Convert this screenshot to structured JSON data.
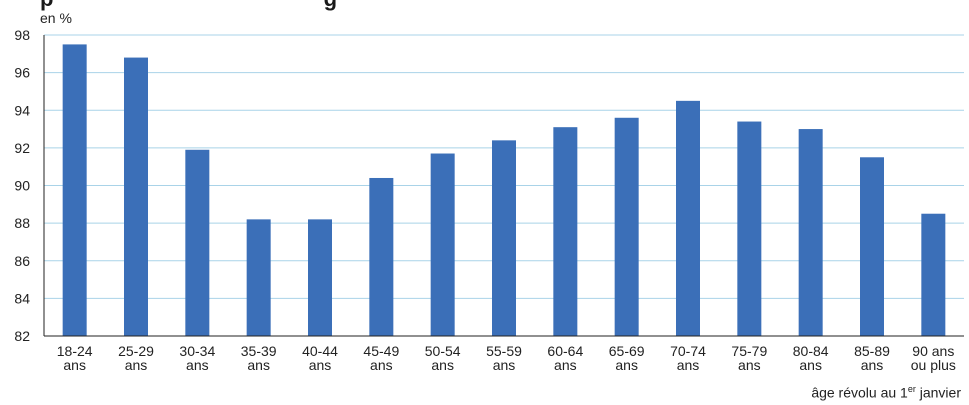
{
  "chart_data": {
    "type": "bar",
    "title_fragment": "p",
    "title_fragment2": "g",
    "ylabel": "en %",
    "xlabel": {
      "text": "âge révolu au 1",
      "superscript": "er",
      "suffix": " janvier"
    },
    "ylim": [
      82,
      98
    ],
    "yticks": [
      82,
      84,
      86,
      88,
      90,
      92,
      94,
      96,
      98
    ],
    "grid": true,
    "bar_color": "#3b6fb8",
    "grid_color": "#a9d3e8",
    "categories": [
      [
        "18-24",
        "ans"
      ],
      [
        "25-29",
        "ans"
      ],
      [
        "30-34",
        "ans"
      ],
      [
        "35-39",
        "ans"
      ],
      [
        "40-44",
        "ans"
      ],
      [
        "45-49",
        "ans"
      ],
      [
        "50-54",
        "ans"
      ],
      [
        "55-59",
        "ans"
      ],
      [
        "60-64",
        "ans"
      ],
      [
        "65-69",
        "ans"
      ],
      [
        "70-74",
        "ans"
      ],
      [
        "75-79",
        "ans"
      ],
      [
        "80-84",
        "ans"
      ],
      [
        "85-89",
        "ans"
      ],
      [
        "90 ans",
        "ou plus"
      ]
    ],
    "values": [
      97.5,
      96.8,
      91.9,
      88.2,
      88.2,
      90.4,
      91.7,
      92.4,
      93.1,
      93.6,
      94.5,
      93.4,
      93.0,
      91.5,
      88.5
    ]
  }
}
